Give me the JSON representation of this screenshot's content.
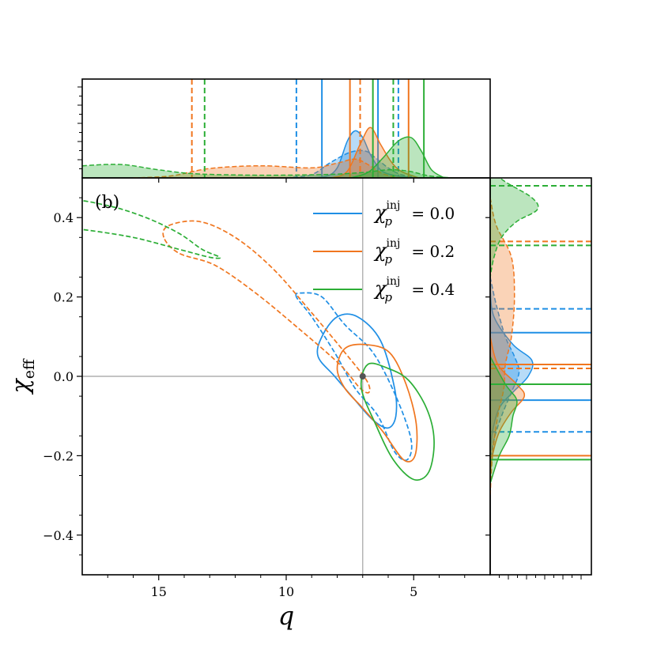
{
  "chart_data": {
    "type": "contour",
    "panel_label": "(b)",
    "xlabel": "q",
    "ylabel": "χeff",
    "xlim": [
      18,
      2
    ],
    "ylim": [
      -0.5,
      0.5
    ],
    "x_inverted": true,
    "x_ticks": [
      {
        "value": 15,
        "label": "15"
      },
      {
        "value": 10,
        "label": "10"
      },
      {
        "value": 5,
        "label": "5"
      }
    ],
    "y_ticks": [
      {
        "value": 0.4,
        "label": "0.4"
      },
      {
        "value": 0.2,
        "label": "0.2"
      },
      {
        "value": 0.0,
        "label": "0.0"
      },
      {
        "value": -0.2,
        "label": "−0.2"
      },
      {
        "value": -0.4,
        "label": "−0.4"
      }
    ],
    "injection": {
      "q": 7.0,
      "chi_eff": 0.0
    },
    "legend_position": "upper-right",
    "series": [
      {
        "legend_base": "χ",
        "legend_sub": "p",
        "legend_sup": "inj",
        "legend_value": "= 0.0",
        "color": "#1f8fe5",
        "solid_contour": [
          [
            8.6,
            0.1
          ],
          [
            8.0,
            0.15
          ],
          [
            7.2,
            0.15
          ],
          [
            6.3,
            0.09
          ],
          [
            5.75,
            -0.03
          ],
          [
            5.7,
            -0.1
          ],
          [
            6.0,
            -0.13
          ],
          [
            6.6,
            -0.11
          ],
          [
            7.3,
            -0.06
          ],
          [
            8.1,
            0.0
          ],
          [
            8.75,
            0.05
          ]
        ],
        "dashed_contour": [
          [
            9.6,
            0.2
          ],
          [
            9.4,
            0.21
          ],
          [
            8.6,
            0.2
          ],
          [
            7.7,
            0.13
          ],
          [
            6.6,
            0.06
          ],
          [
            5.7,
            -0.05
          ],
          [
            5.1,
            -0.16
          ],
          [
            5.25,
            -0.21
          ],
          [
            5.75,
            -0.19
          ],
          [
            6.4,
            -0.1
          ],
          [
            7.3,
            -0.03
          ],
          [
            8.1,
            0.06
          ],
          [
            9.0,
            0.15
          ]
        ],
        "q_quantiles_solid": [
          8.6,
          6.4
        ],
        "q_quantiles_dashed": [
          9.6,
          5.6
        ],
        "chi_quantiles_solid": [
          0.11,
          -0.06
        ],
        "chi_quantiles_dashed": [
          0.17,
          -0.14
        ],
        "q_marginal_solid": [
          [
            9.5,
            0
          ],
          [
            8.5,
            0.02
          ],
          [
            8.0,
            0.15
          ],
          [
            7.6,
            0.55
          ],
          [
            7.3,
            0.7
          ],
          [
            7.0,
            0.6
          ],
          [
            6.7,
            0.35
          ],
          [
            6.3,
            0.12
          ],
          [
            5.8,
            0.04
          ],
          [
            5.0,
            0
          ]
        ],
        "q_marginal_dashed": [
          [
            10.0,
            0
          ],
          [
            9.0,
            0.05
          ],
          [
            8.3,
            0.22
          ],
          [
            7.5,
            0.38
          ],
          [
            6.9,
            0.4
          ],
          [
            6.5,
            0.3
          ],
          [
            6.0,
            0.15
          ],
          [
            5.5,
            0.05
          ],
          [
            4.8,
            0
          ]
        ],
        "chi_marginal_solid": [
          [
            0.22,
            0
          ],
          [
            0.15,
            0.05
          ],
          [
            0.08,
            0.3
          ],
          [
            0.04,
            0.55
          ],
          [
            0.0,
            0.5
          ],
          [
            -0.04,
            0.3
          ],
          [
            -0.08,
            0.12
          ],
          [
            -0.14,
            0.03
          ],
          [
            -0.2,
            0
          ]
        ],
        "chi_marginal_dashed": [
          [
            0.25,
            0
          ],
          [
            0.18,
            0.08
          ],
          [
            0.1,
            0.2
          ],
          [
            0.05,
            0.32
          ],
          [
            0.01,
            0.38
          ],
          [
            -0.04,
            0.28
          ],
          [
            -0.1,
            0.15
          ],
          [
            -0.16,
            0.05
          ],
          [
            -0.22,
            0
          ]
        ]
      },
      {
        "legend_base": "χ",
        "legend_sub": "p",
        "legend_sup": "inj",
        "legend_value": "= 0.2",
        "color": "#f0761f",
        "solid_contour": [
          [
            7.7,
            0.07
          ],
          [
            6.9,
            0.08
          ],
          [
            5.95,
            0.06
          ],
          [
            5.3,
            -0.02
          ],
          [
            4.9,
            -0.12
          ],
          [
            4.95,
            -0.2
          ],
          [
            5.4,
            -0.21
          ],
          [
            6.2,
            -0.14
          ],
          [
            7.0,
            -0.08
          ],
          [
            7.7,
            -0.03
          ],
          [
            8.0,
            0.02
          ]
        ],
        "dashed_contour": [
          [
            14.8,
            0.35
          ],
          [
            14.6,
            0.38
          ],
          [
            13.4,
            0.39
          ],
          [
            12.0,
            0.35
          ],
          [
            10.5,
            0.27
          ],
          [
            9.0,
            0.16
          ],
          [
            7.7,
            0.06
          ],
          [
            6.85,
            -0.01
          ],
          [
            6.75,
            -0.04
          ],
          [
            7.1,
            -0.03
          ],
          [
            7.9,
            0.03
          ],
          [
            9.5,
            0.12
          ],
          [
            11.2,
            0.21
          ],
          [
            12.8,
            0.28
          ],
          [
            14.2,
            0.31
          ]
        ],
        "q_quantiles_solid": [
          7.5,
          5.2
        ],
        "q_quantiles_dashed": [
          13.7,
          7.1
        ],
        "chi_quantiles_solid": [
          0.03,
          -0.2
        ],
        "chi_quantiles_dashed": [
          0.34,
          0.02
        ],
        "q_marginal_solid": [
          [
            8.2,
            0
          ],
          [
            7.6,
            0.1
          ],
          [
            7.1,
            0.5
          ],
          [
            6.7,
            0.75
          ],
          [
            6.3,
            0.5
          ],
          [
            5.9,
            0.25
          ],
          [
            5.5,
            0.1
          ],
          [
            4.8,
            0
          ]
        ],
        "q_marginal_dashed": [
          [
            16.0,
            0
          ],
          [
            14.5,
            0.03
          ],
          [
            13.0,
            0.14
          ],
          [
            11.0,
            0.18
          ],
          [
            9.0,
            0.15
          ],
          [
            8.0,
            0.22
          ],
          [
            7.3,
            0.28
          ],
          [
            6.8,
            0.2
          ],
          [
            6.2,
            0.06
          ],
          [
            5.5,
            0
          ]
        ],
        "chi_marginal_solid": [
          [
            0.1,
            0
          ],
          [
            0.03,
            0.1
          ],
          [
            -0.02,
            0.35
          ],
          [
            -0.05,
            0.45
          ],
          [
            -0.09,
            0.28
          ],
          [
            -0.14,
            0.12
          ],
          [
            -0.2,
            0.03
          ],
          [
            -0.25,
            0
          ]
        ],
        "chi_marginal_dashed": [
          [
            0.45,
            0
          ],
          [
            0.38,
            0.08
          ],
          [
            0.3,
            0.28
          ],
          [
            0.2,
            0.32
          ],
          [
            0.1,
            0.28
          ],
          [
            0.03,
            0.2
          ],
          [
            -0.03,
            0.18
          ],
          [
            -0.1,
            0.1
          ],
          [
            -0.2,
            0.03
          ],
          [
            -0.3,
            0
          ]
        ]
      },
      {
        "legend_base": "χ",
        "legend_sub": "p",
        "legend_sup": "inj",
        "legend_value": "= 0.4",
        "color": "#2cae36",
        "solid_contour": [
          [
            6.8,
            0.03
          ],
          [
            6.0,
            0.02
          ],
          [
            5.2,
            -0.01
          ],
          [
            4.5,
            -0.08
          ],
          [
            4.2,
            -0.16
          ],
          [
            4.4,
            -0.24
          ],
          [
            5.0,
            -0.26
          ],
          [
            5.8,
            -0.21
          ],
          [
            6.5,
            -0.12
          ],
          [
            7.05,
            -0.03
          ]
        ],
        "dashed_contour": [
          [
            18.5,
            0.44
          ],
          [
            17.0,
            0.43
          ],
          [
            15.5,
            0.4
          ],
          [
            14.2,
            0.36
          ],
          [
            13.3,
            0.32
          ],
          [
            12.6,
            0.3
          ],
          [
            13.0,
            0.3
          ],
          [
            14.2,
            0.32
          ],
          [
            16.0,
            0.35
          ],
          [
            18.0,
            0.37
          ],
          [
            18.5,
            0.37
          ]
        ],
        "q_quantiles_solid": [
          6.6,
          4.6
        ],
        "q_quantiles_dashed": [
          13.2,
          5.8
        ],
        "chi_quantiles_solid": [
          -0.02,
          -0.21
        ],
        "chi_quantiles_dashed": [
          0.48,
          0.33
        ],
        "q_marginal_solid": [
          [
            7.5,
            0
          ],
          [
            6.8,
            0.08
          ],
          [
            6.2,
            0.3
          ],
          [
            5.6,
            0.55
          ],
          [
            5.1,
            0.6
          ],
          [
            4.7,
            0.4
          ],
          [
            4.3,
            0.12
          ],
          [
            3.8,
            0
          ]
        ],
        "q_marginal_dashed": [
          [
            18.0,
            0.18
          ],
          [
            16.5,
            0.2
          ],
          [
            15.0,
            0.12
          ],
          [
            13.5,
            0.06
          ],
          [
            11.0,
            0.04
          ],
          [
            8.5,
            0.05
          ],
          [
            7.0,
            0.08
          ],
          [
            6.0,
            0.12
          ],
          [
            5.2,
            0.1
          ],
          [
            4.4,
            0.03
          ],
          [
            3.5,
            0
          ]
        ],
        "chi_marginal_solid": [
          [
            0.05,
            0
          ],
          [
            -0.02,
            0.2
          ],
          [
            -0.06,
            0.35
          ],
          [
            -0.1,
            0.3
          ],
          [
            -0.15,
            0.25
          ],
          [
            -0.2,
            0.12
          ],
          [
            -0.27,
            0
          ]
        ],
        "chi_marginal_dashed": [
          [
            0.52,
            0.0
          ],
          [
            0.49,
            0.2
          ],
          [
            0.45,
            0.55
          ],
          [
            0.42,
            0.62
          ],
          [
            0.39,
            0.35
          ],
          [
            0.35,
            0.15
          ],
          [
            0.3,
            0.05
          ],
          [
            0.25,
            0
          ]
        ]
      }
    ]
  }
}
